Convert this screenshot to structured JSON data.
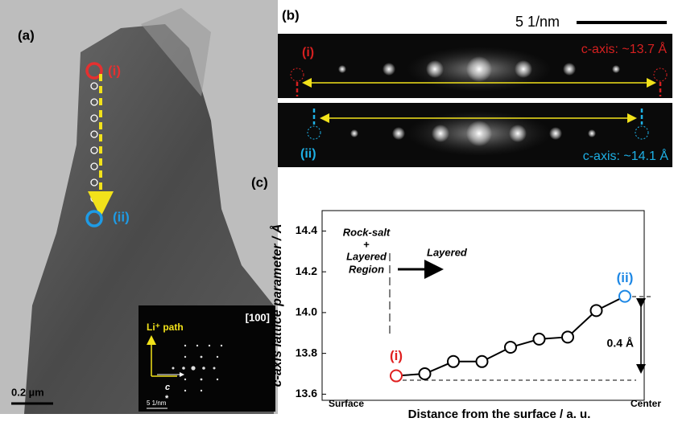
{
  "panel_a": {
    "label": "(a)",
    "point_i": "(i)",
    "point_ii": "(ii)",
    "scale_bar": "0.2 µm",
    "inset": {
      "zone_axis": "[100]",
      "path_label": "Li⁺ path",
      "axis_c": "c",
      "axis_star": "*",
      "scale": "5 1/nm"
    }
  },
  "panel_b": {
    "label": "(b)",
    "scale": "5 1/nm",
    "top": {
      "label": "(i)",
      "c_axis": "c-axis: ~13.7 Å"
    },
    "bottom": {
      "label": "(ii)",
      "c_axis": "c-axis: ~14.1 Å"
    }
  },
  "panel_c_label": "(c)",
  "chart_data": {
    "type": "line",
    "ylabel": "c-axis lattice parameter / Å",
    "xlabel": "Distance from the surface / a. u.",
    "xtick_labels": [
      "Surface",
      "Center"
    ],
    "categories": [
      null,
      null,
      null,
      null,
      null,
      null,
      null,
      null,
      null
    ],
    "values": [
      13.69,
      13.7,
      13.76,
      13.76,
      13.83,
      13.87,
      13.88,
      14.01,
      14.08
    ],
    "color": "#000000",
    "highlight_colors": [
      "#e02020",
      "#1e88e5"
    ],
    "ylim": [
      13.57,
      14.5
    ],
    "yticks": [
      13.6,
      13.8,
      {
        "value": 14,
        "label": "14.0"
      },
      14.2,
      14.4
    ],
    "annotations": {
      "region": [
        "Rock-salt",
        "+",
        "Layered",
        "Region"
      ],
      "layered": "Layered",
      "point_labels": [
        "(i)",
        "(ii)"
      ],
      "delta": "0.4 Å"
    }
  }
}
